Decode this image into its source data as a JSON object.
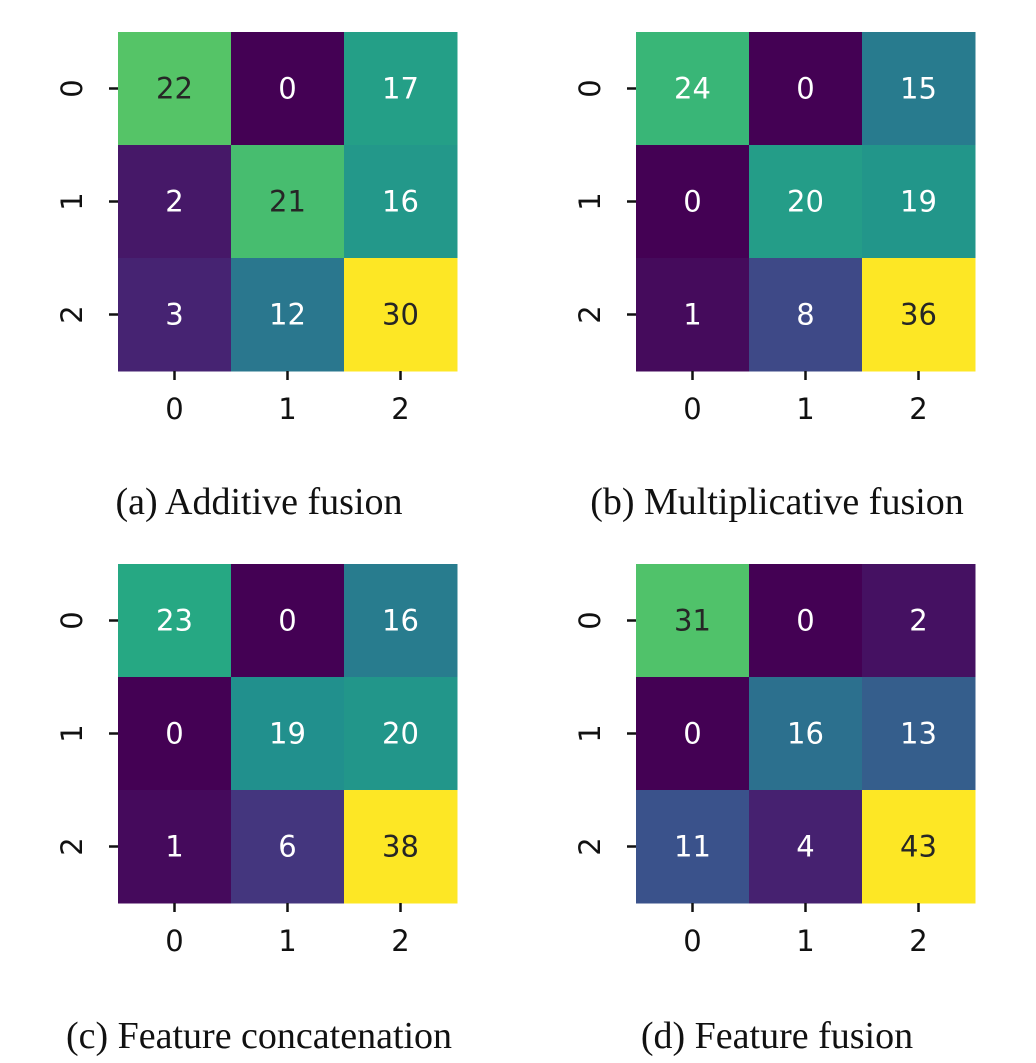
{
  "chart_data": [
    {
      "type": "heatmap",
      "title": "",
      "caption": "(a) Additive fusion",
      "xlabel": "",
      "ylabel": "",
      "x_tick_labels": [
        "0",
        "1",
        "2"
      ],
      "y_tick_labels": [
        "0",
        "1",
        "2"
      ],
      "values": [
        [
          22,
          0,
          17
        ],
        [
          2,
          21,
          16
        ],
        [
          3,
          12,
          30
        ]
      ],
      "colorscale": "viridis",
      "colorbar": false
    },
    {
      "type": "heatmap",
      "title": "",
      "caption": "(b) Multiplicative fusion",
      "xlabel": "",
      "ylabel": "",
      "x_tick_labels": [
        "0",
        "1",
        "2"
      ],
      "y_tick_labels": [
        "0",
        "1",
        "2"
      ],
      "values": [
        [
          24,
          0,
          15
        ],
        [
          0,
          20,
          19
        ],
        [
          1,
          8,
          36
        ]
      ],
      "colorscale": "viridis",
      "colorbar": false
    },
    {
      "type": "heatmap",
      "title": "",
      "caption": "(c) Feature concatenation",
      "xlabel": "",
      "ylabel": "",
      "x_tick_labels": [
        "0",
        "1",
        "2"
      ],
      "y_tick_labels": [
        "0",
        "1",
        "2"
      ],
      "values": [
        [
          23,
          0,
          16
        ],
        [
          0,
          19,
          20
        ],
        [
          1,
          6,
          38
        ]
      ],
      "colorscale": "viridis",
      "colorbar": false
    },
    {
      "type": "heatmap",
      "title": "",
      "caption": "(d) Feature fusion",
      "xlabel": "",
      "ylabel": "",
      "x_tick_labels": [
        "0",
        "1",
        "2"
      ],
      "y_tick_labels": [
        "0",
        "1",
        "2"
      ],
      "values": [
        [
          31,
          0,
          2
        ],
        [
          0,
          16,
          13
        ],
        [
          11,
          4,
          43
        ]
      ],
      "colorscale": "viridis",
      "colorbar": false
    }
  ]
}
